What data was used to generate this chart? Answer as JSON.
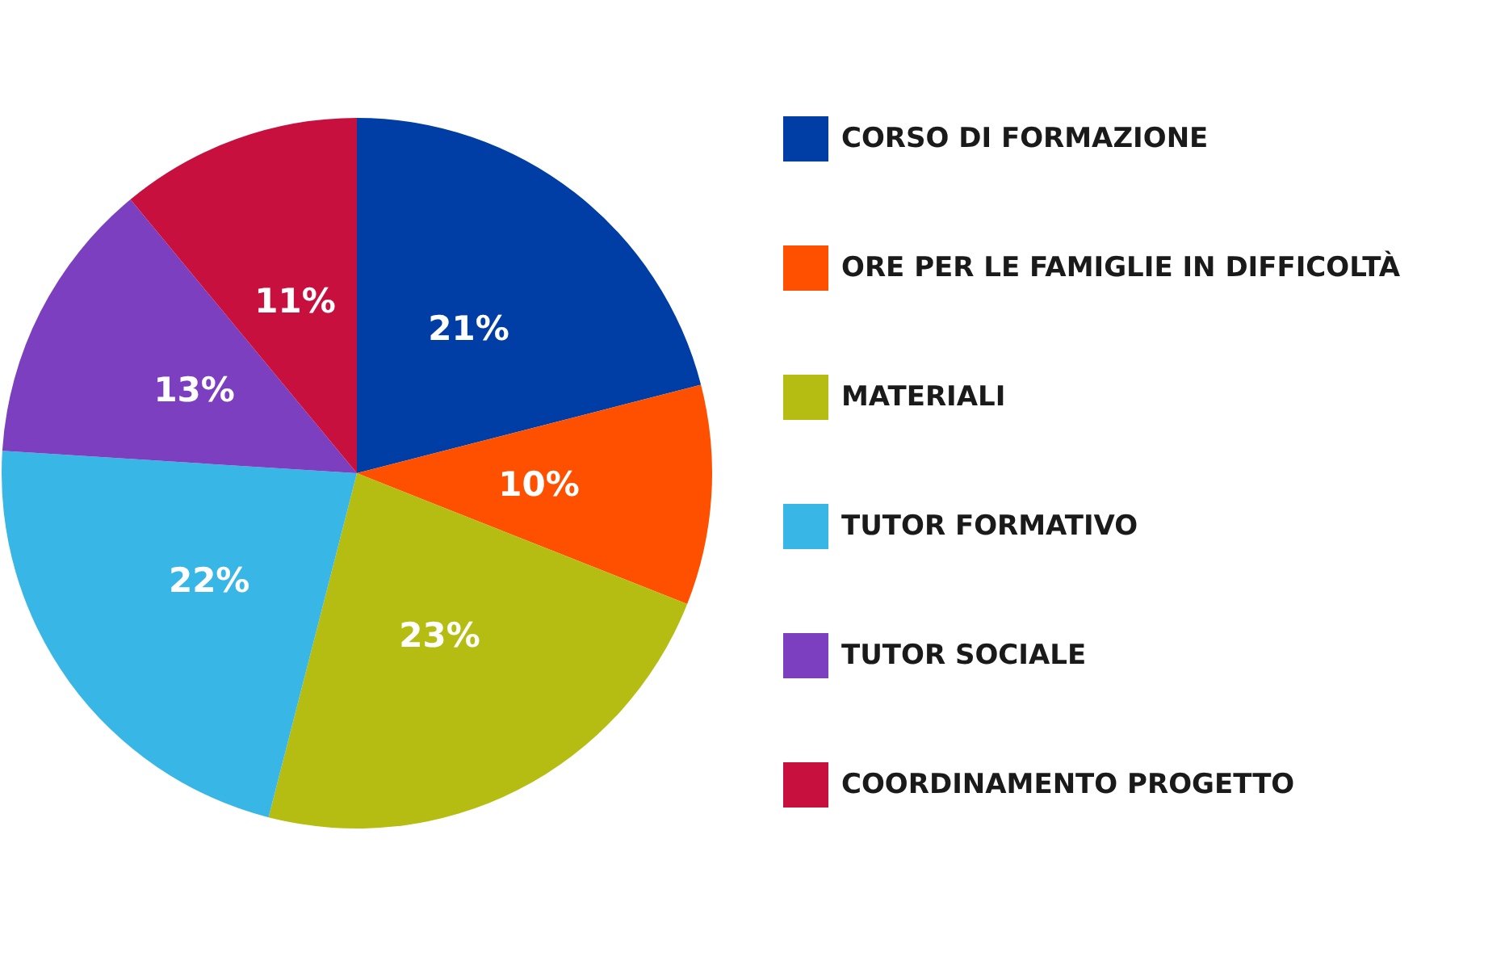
{
  "chart_data": {
    "type": "pie",
    "categories": [
      "CORSO DI FORMAZIONE",
      "ORE PER LE FAMIGLIE IN DIFFICOLTÀ",
      "MATERIALI",
      "TUTOR FORMATIVO",
      "TUTOR SOCIALE",
      "COORDINAMENTO PROGETTO"
    ],
    "values": [
      21,
      10,
      23,
      22,
      13,
      11
    ],
    "value_labels": [
      "21%",
      "10%",
      "23%",
      "22%",
      "13%",
      "11%"
    ],
    "colors": [
      "#003da5",
      "#ff5000",
      "#b5bd12",
      "#38b6e6",
      "#7b3fbf",
      "#c8103e"
    ],
    "legend": "right"
  }
}
